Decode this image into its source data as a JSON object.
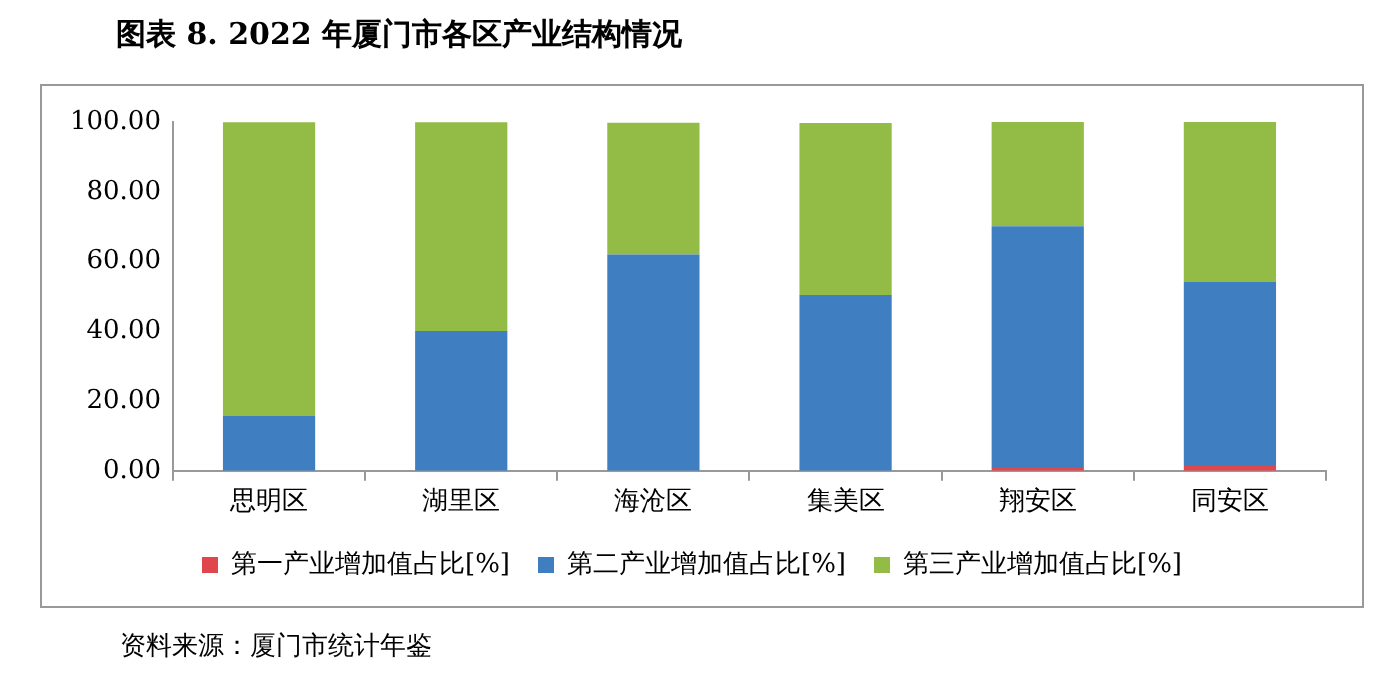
{
  "chart_data": {
    "type": "bar",
    "title": "图表 8. 2022 年厦门市各区产业结构情况",
    "stacked": true,
    "categories": [
      "思明区",
      "湖里区",
      "海沧区",
      "集美区",
      "翔安区",
      "同安区"
    ],
    "series": [
      {
        "name": "第一产业增加值占比[%]",
        "color": "#e0474c",
        "values": [
          null,
          null,
          null,
          null,
          0.8,
          1.4
        ]
      },
      {
        "name": "第二产业增加值占比[%]",
        "color": "#3f7fc1",
        "values": [
          15.7,
          40.1,
          62.0,
          50.4,
          69.3,
          52.7
        ]
      },
      {
        "name": "第三产业增加值占比[%]",
        "color": "#92bc46",
        "values": [
          84.2,
          59.8,
          37.8,
          49.3,
          29.9,
          45.9
        ]
      }
    ],
    "ylim": [
      0,
      100
    ],
    "yticks": [
      {
        "value": 0,
        "label": "0.00"
      },
      {
        "value": 20,
        "label": "20.00"
      },
      {
        "value": 40,
        "label": "40.00"
      },
      {
        "value": 60,
        "label": "60.00"
      },
      {
        "value": 80,
        "label": "80.00"
      },
      {
        "value": 100,
        "label": "100.00"
      }
    ],
    "grid": false,
    "legend": "bottom",
    "annotations": [
      "资料来源：厦门市统计年鉴"
    ]
  }
}
